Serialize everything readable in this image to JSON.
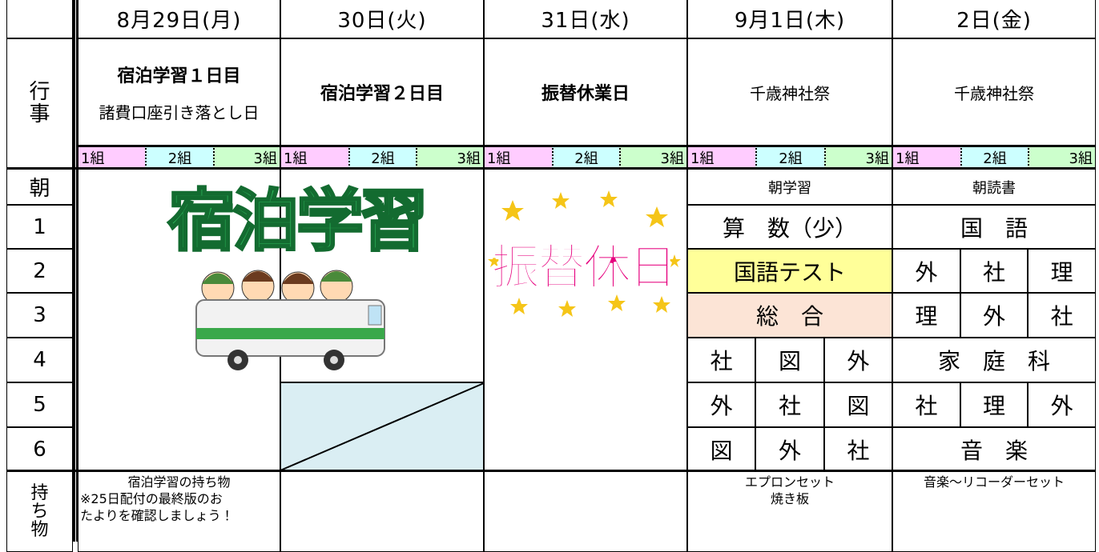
{
  "days": [
    "8月29日(月)",
    "30日(火)",
    "31日(水)",
    "9月1日(木)",
    "2日(金)"
  ],
  "row_labels": {
    "events": "行事",
    "periods": [
      "朝",
      "1",
      "2",
      "3",
      "4",
      "5",
      "6"
    ],
    "items": "持ち物"
  },
  "class_groups": [
    "1組",
    "2組",
    "3組"
  ],
  "events": [
    [
      "宿泊学習１日目",
      "諸費口座引き落とし日"
    ],
    [
      "宿泊学習２日目"
    ],
    [
      "振替休業日"
    ],
    [
      "千歳神社祭"
    ],
    [
      "千歳神社祭"
    ]
  ],
  "illustrations": {
    "camp": "宿泊学習",
    "holiday": "振替休日"
  },
  "thursday": [
    "朝学習",
    "算　数（少）",
    "国語テスト",
    "総　合",
    [
      "社",
      "図",
      "外"
    ],
    [
      "外",
      "社",
      "図"
    ],
    [
      "図",
      "外",
      "社"
    ]
  ],
  "friday": [
    "朝読書",
    "国　語",
    [
      "外",
      "社",
      "理"
    ],
    [
      "理",
      "外",
      "社"
    ],
    "家　庭　科",
    [
      "社",
      "理",
      "外"
    ],
    "音　楽"
  ],
  "items": {
    "monday": [
      "宿泊学習の持ち物",
      "※25日配付の最終版のお",
      "たよりを確認しましょう！"
    ],
    "thursday": [
      "エプロンセット",
      "焼き板"
    ],
    "friday": [
      "音楽～リコーダーセット"
    ]
  }
}
